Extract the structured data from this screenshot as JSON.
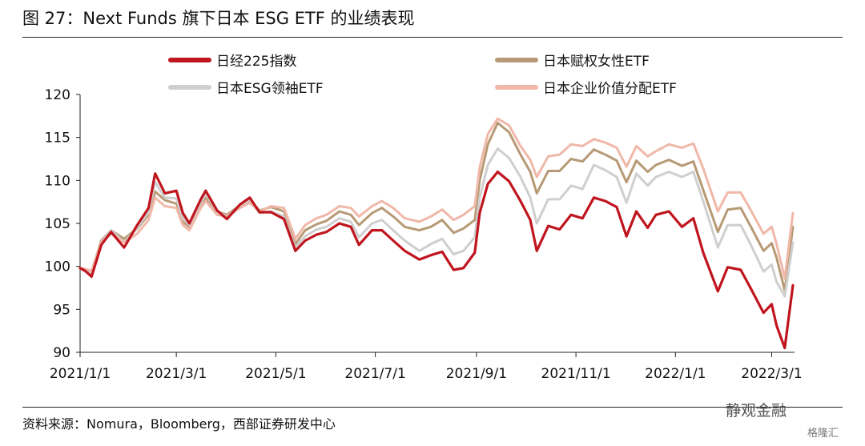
{
  "figure": {
    "title": "图 27：Next Funds 旗下日本 ESG ETF 的业绩表现",
    "source": "资料来源：Nomura，Bloomberg，西部证券研发中心",
    "watermark": "静观金融",
    "watermark2": "格隆汇"
  },
  "chart_data": {
    "type": "line",
    "title": "",
    "xlabel": "",
    "ylabel": "",
    "ylim": [
      90,
      120
    ],
    "yticks": [
      90,
      95,
      100,
      105,
      110,
      115,
      120
    ],
    "xlim": [
      "2021-01-01",
      "2022-03-15"
    ],
    "xticks": [
      "2021/1/1",
      "2021/3/1",
      "2021/5/1",
      "2021/7/1",
      "2021/9/1",
      "2021/11/1",
      "2022/1/1",
      "2022/3/1"
    ],
    "xtick_dates": [
      "2021-01-01",
      "2021-03-01",
      "2021-05-01",
      "2021-07-01",
      "2021-09-01",
      "2021-11-01",
      "2022-01-01",
      "2022-03-01"
    ],
    "legend_position": "top",
    "grid": false,
    "series": [
      {
        "name": "日经225指数",
        "color": "#c0151e",
        "x": [
          "2021-01-01",
          "2021-01-04",
          "2021-01-08",
          "2021-01-14",
          "2021-01-20",
          "2021-01-28",
          "2021-02-05",
          "2021-02-12",
          "2021-02-16",
          "2021-02-22",
          "2021-03-01",
          "2021-03-05",
          "2021-03-09",
          "2021-03-16",
          "2021-03-19",
          "2021-03-26",
          "2021-04-01",
          "2021-04-09",
          "2021-04-15",
          "2021-04-21",
          "2021-04-28",
          "2021-05-06",
          "2021-05-13",
          "2021-05-19",
          "2021-05-26",
          "2021-06-01",
          "2021-06-09",
          "2021-06-16",
          "2021-06-21",
          "2021-06-29",
          "2021-07-05",
          "2021-07-12",
          "2021-07-19",
          "2021-07-28",
          "2021-08-04",
          "2021-08-11",
          "2021-08-18",
          "2021-08-24",
          "2021-08-31",
          "2021-09-03",
          "2021-09-08",
          "2021-09-14",
          "2021-09-21",
          "2021-09-28",
          "2021-10-04",
          "2021-10-08",
          "2021-10-15",
          "2021-10-22",
          "2021-10-29",
          "2021-11-05",
          "2021-11-12",
          "2021-11-19",
          "2021-11-26",
          "2021-12-02",
          "2021-12-08",
          "2021-12-15",
          "2021-12-20",
          "2021-12-28",
          "2022-01-05",
          "2022-01-12",
          "2022-01-18",
          "2022-01-27",
          "2022-02-02",
          "2022-02-10",
          "2022-02-16",
          "2022-02-24",
          "2022-03-01",
          "2022-03-04",
          "2022-03-09",
          "2022-03-14"
        ],
        "y": [
          99.8,
          99.5,
          98.8,
          102.5,
          104.0,
          102.2,
          104.8,
          106.8,
          110.8,
          108.5,
          108.8,
          106.2,
          105.0,
          107.8,
          108.8,
          106.5,
          105.5,
          107.2,
          108.0,
          106.3,
          106.3,
          105.5,
          101.8,
          103.0,
          103.7,
          104.0,
          105.0,
          104.6,
          102.5,
          104.2,
          104.2,
          103.0,
          101.8,
          100.8,
          101.3,
          101.7,
          99.6,
          99.8,
          101.6,
          106.2,
          109.6,
          111.0,
          109.9,
          107.6,
          105.4,
          101.8,
          104.7,
          104.3,
          106.0,
          105.6,
          108.0,
          107.6,
          106.9,
          103.5,
          106.4,
          104.5,
          106.0,
          106.4,
          104.6,
          105.6,
          101.6,
          97.1,
          99.9,
          99.6,
          97.5,
          94.6,
          95.6,
          93.1,
          90.5,
          97.8
        ]
      },
      {
        "name": "日本赋权女性ETF",
        "color": "#b79a75",
        "x": [
          "2021-01-01",
          "2021-01-04",
          "2021-01-08",
          "2021-01-14",
          "2021-01-20",
          "2021-01-28",
          "2021-02-05",
          "2021-02-12",
          "2021-02-16",
          "2021-02-22",
          "2021-03-01",
          "2021-03-05",
          "2021-03-09",
          "2021-03-16",
          "2021-03-19",
          "2021-03-26",
          "2021-04-01",
          "2021-04-09",
          "2021-04-15",
          "2021-04-21",
          "2021-04-28",
          "2021-05-06",
          "2021-05-13",
          "2021-05-19",
          "2021-05-26",
          "2021-06-01",
          "2021-06-09",
          "2021-06-16",
          "2021-06-21",
          "2021-06-29",
          "2021-07-05",
          "2021-07-12",
          "2021-07-19",
          "2021-07-28",
          "2021-08-04",
          "2021-08-11",
          "2021-08-18",
          "2021-08-24",
          "2021-08-31",
          "2021-09-03",
          "2021-09-08",
          "2021-09-14",
          "2021-09-21",
          "2021-09-28",
          "2021-10-04",
          "2021-10-08",
          "2021-10-15",
          "2021-10-22",
          "2021-10-29",
          "2021-11-05",
          "2021-11-12",
          "2021-11-19",
          "2021-11-26",
          "2021-12-02",
          "2021-12-08",
          "2021-12-15",
          "2021-12-20",
          "2021-12-28",
          "2022-01-05",
          "2022-01-12",
          "2022-01-18",
          "2022-01-27",
          "2022-02-02",
          "2022-02-10",
          "2022-02-16",
          "2022-02-24",
          "2022-03-01",
          "2022-03-04",
          "2022-03-09",
          "2022-03-14"
        ],
        "y": [
          99.8,
          99.6,
          99.4,
          103.0,
          104.2,
          103.2,
          104.4,
          106.0,
          108.7,
          107.7,
          107.3,
          105.2,
          104.6,
          107.2,
          108.0,
          106.4,
          106.0,
          107.1,
          107.7,
          106.5,
          106.9,
          106.4,
          102.6,
          104.2,
          104.9,
          105.3,
          106.4,
          106.0,
          104.8,
          106.2,
          106.8,
          105.8,
          104.6,
          104.2,
          104.6,
          105.4,
          103.9,
          104.4,
          105.4,
          110.0,
          114.2,
          116.7,
          115.6,
          113.0,
          111.0,
          108.5,
          111.1,
          111.1,
          112.5,
          112.2,
          113.6,
          113.0,
          112.3,
          109.8,
          112.3,
          111.0,
          111.8,
          112.4,
          111.7,
          112.2,
          108.9,
          104.0,
          106.6,
          106.8,
          104.7,
          101.8,
          102.7,
          101.0,
          97.2,
          104.6
        ]
      },
      {
        "name": "日本ESG领袖ETF",
        "color": "#cfcfcf",
        "x": [
          "2021-01-01",
          "2021-01-04",
          "2021-01-08",
          "2021-01-14",
          "2021-01-20",
          "2021-01-28",
          "2021-02-05",
          "2021-02-12",
          "2021-02-16",
          "2021-02-22",
          "2021-03-01",
          "2021-03-05",
          "2021-03-09",
          "2021-03-16",
          "2021-03-19",
          "2021-03-26",
          "2021-04-01",
          "2021-04-09",
          "2021-04-15",
          "2021-04-21",
          "2021-04-28",
          "2021-05-06",
          "2021-05-13",
          "2021-05-19",
          "2021-05-26",
          "2021-06-01",
          "2021-06-09",
          "2021-06-16",
          "2021-06-21",
          "2021-06-29",
          "2021-07-05",
          "2021-07-12",
          "2021-07-19",
          "2021-07-28",
          "2021-08-04",
          "2021-08-11",
          "2021-08-18",
          "2021-08-24",
          "2021-08-31",
          "2021-09-03",
          "2021-09-08",
          "2021-09-14",
          "2021-09-21",
          "2021-09-28",
          "2021-10-04",
          "2021-10-08",
          "2021-10-15",
          "2021-10-22",
          "2021-10-29",
          "2021-11-05",
          "2021-11-12",
          "2021-11-19",
          "2021-11-26",
          "2021-12-02",
          "2021-12-08",
          "2021-12-15",
          "2021-12-20",
          "2021-12-28",
          "2022-01-05",
          "2022-01-12",
          "2022-01-18",
          "2022-01-27",
          "2022-02-02",
          "2022-02-10",
          "2022-02-16",
          "2022-02-24",
          "2022-03-01",
          "2022-03-04",
          "2022-03-09",
          "2022-03-14"
        ],
        "y": [
          99.8,
          99.4,
          99.2,
          102.8,
          104.2,
          102.8,
          104.5,
          106.3,
          109.8,
          108.0,
          107.9,
          105.6,
          104.8,
          107.4,
          108.4,
          106.4,
          105.8,
          107.0,
          107.8,
          106.2,
          106.4,
          105.8,
          102.2,
          103.5,
          104.3,
          104.6,
          105.6,
          105.2,
          103.4,
          105.0,
          105.4,
          104.2,
          103.0,
          101.8,
          102.6,
          103.2,
          101.4,
          101.8,
          103.4,
          108.0,
          111.8,
          113.7,
          112.6,
          110.4,
          108.0,
          105.0,
          107.8,
          107.8,
          109.4,
          109.0,
          111.8,
          111.2,
          110.4,
          107.4,
          110.8,
          109.4,
          110.4,
          111.0,
          110.4,
          111.0,
          107.6,
          102.2,
          104.8,
          104.8,
          102.6,
          99.4,
          100.2,
          98.2,
          96.5,
          102.8
        ]
      },
      {
        "name": "日本企业价值分配ETF",
        "color": "#f0b8a8",
        "x": [
          "2021-01-01",
          "2021-01-04",
          "2021-01-08",
          "2021-01-14",
          "2021-01-20",
          "2021-01-28",
          "2021-02-05",
          "2021-02-12",
          "2021-02-16",
          "2021-02-22",
          "2021-03-01",
          "2021-03-05",
          "2021-03-09",
          "2021-03-16",
          "2021-03-19",
          "2021-03-26",
          "2021-04-01",
          "2021-04-09",
          "2021-04-15",
          "2021-04-21",
          "2021-04-28",
          "2021-05-06",
          "2021-05-13",
          "2021-05-19",
          "2021-05-26",
          "2021-06-01",
          "2021-06-09",
          "2021-06-16",
          "2021-06-21",
          "2021-06-29",
          "2021-07-05",
          "2021-07-12",
          "2021-07-19",
          "2021-07-28",
          "2021-08-04",
          "2021-08-11",
          "2021-08-18",
          "2021-08-24",
          "2021-08-31",
          "2021-09-03",
          "2021-09-08",
          "2021-09-14",
          "2021-09-21",
          "2021-09-28",
          "2021-10-04",
          "2021-10-08",
          "2021-10-15",
          "2021-10-22",
          "2021-10-29",
          "2021-11-05",
          "2021-11-12",
          "2021-11-19",
          "2021-11-26",
          "2021-12-02",
          "2021-12-08",
          "2021-12-15",
          "2021-12-20",
          "2021-12-28",
          "2022-01-05",
          "2022-01-12",
          "2022-01-18",
          "2022-01-27",
          "2022-02-02",
          "2022-02-10",
          "2022-02-16",
          "2022-02-24",
          "2022-03-01",
          "2022-03-04",
          "2022-03-09",
          "2022-03-14"
        ],
        "y": [
          99.8,
          99.7,
          99.5,
          102.8,
          103.8,
          102.8,
          103.8,
          105.4,
          108.0,
          107.0,
          106.8,
          104.8,
          104.2,
          106.8,
          107.6,
          106.0,
          105.8,
          106.8,
          107.4,
          106.4,
          107.0,
          106.8,
          103.2,
          104.8,
          105.6,
          106.0,
          107.0,
          106.8,
          105.8,
          107.0,
          107.6,
          106.8,
          105.6,
          105.2,
          105.8,
          106.6,
          105.4,
          106.0,
          107.0,
          111.5,
          115.4,
          117.2,
          116.4,
          114.0,
          112.4,
          110.4,
          112.8,
          113.0,
          114.2,
          114.0,
          114.8,
          114.4,
          113.8,
          111.6,
          114.0,
          112.8,
          113.4,
          114.2,
          113.8,
          114.3,
          111.4,
          106.4,
          108.6,
          108.6,
          106.6,
          103.8,
          104.6,
          102.6,
          98.6,
          106.2
        ]
      }
    ]
  }
}
